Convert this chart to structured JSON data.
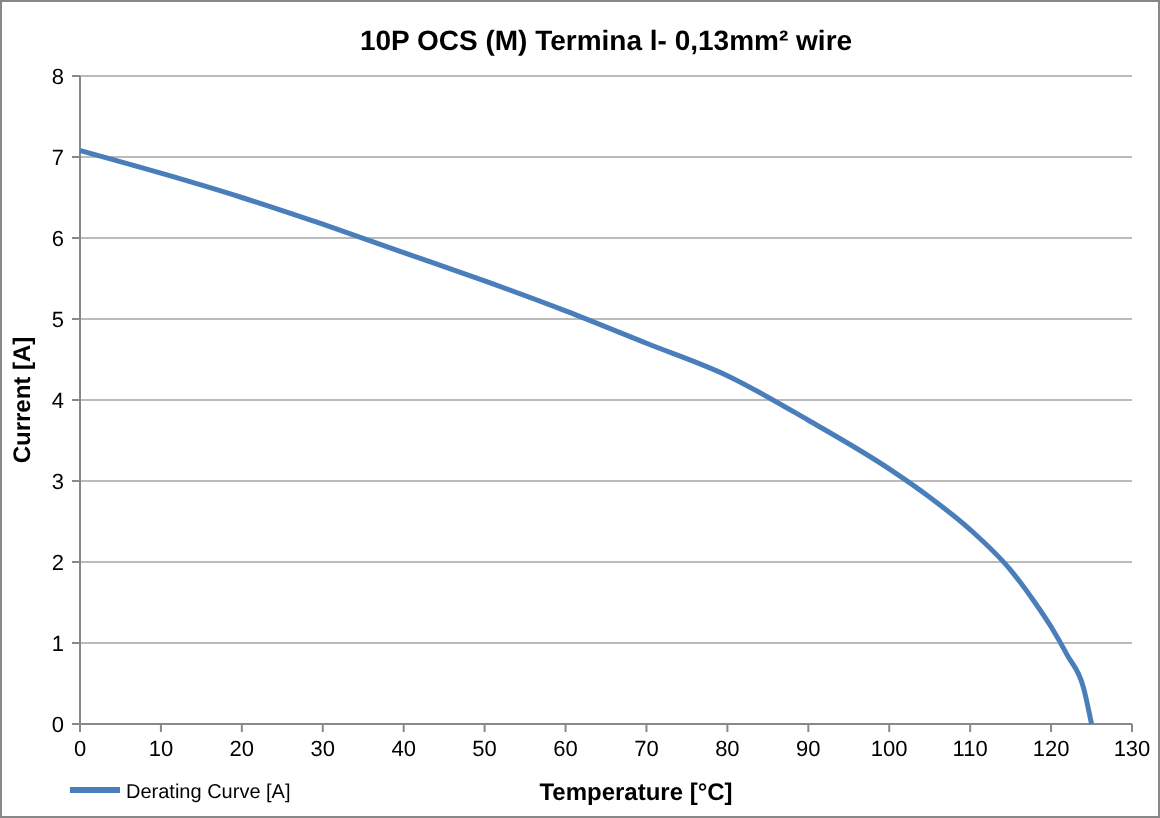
{
  "chart_data": {
    "type": "line",
    "title": "10P OCS (M) Termina l- 0,13mm² wire",
    "xlabel": "Temperature [°C]",
    "ylabel": "Current [A]",
    "xlim": [
      0,
      130
    ],
    "xticks": [
      0,
      10,
      20,
      30,
      40,
      50,
      60,
      70,
      80,
      90,
      100,
      110,
      120,
      130
    ],
    "ylim": [
      0,
      8
    ],
    "yticks": [
      0,
      1,
      2,
      3,
      4,
      5,
      6,
      7,
      8
    ],
    "grid": "y",
    "legend": "bottom left",
    "marker": "none",
    "line_style": "solid",
    "x": [
      0,
      10,
      20,
      30,
      40,
      50,
      60,
      70,
      80,
      90,
      100,
      105,
      110,
      115,
      118,
      120,
      122,
      124,
      125
    ],
    "series": [
      {
        "name": "Derating Curve [A]",
        "color": "#4a7ebb",
        "values": [
          7.08,
          6.8,
          6.5,
          6.17,
          5.82,
          5.47,
          5.1,
          4.7,
          4.3,
          3.75,
          3.15,
          2.8,
          2.4,
          1.9,
          1.5,
          1.2,
          0.85,
          0.45,
          0
        ]
      }
    ]
  }
}
